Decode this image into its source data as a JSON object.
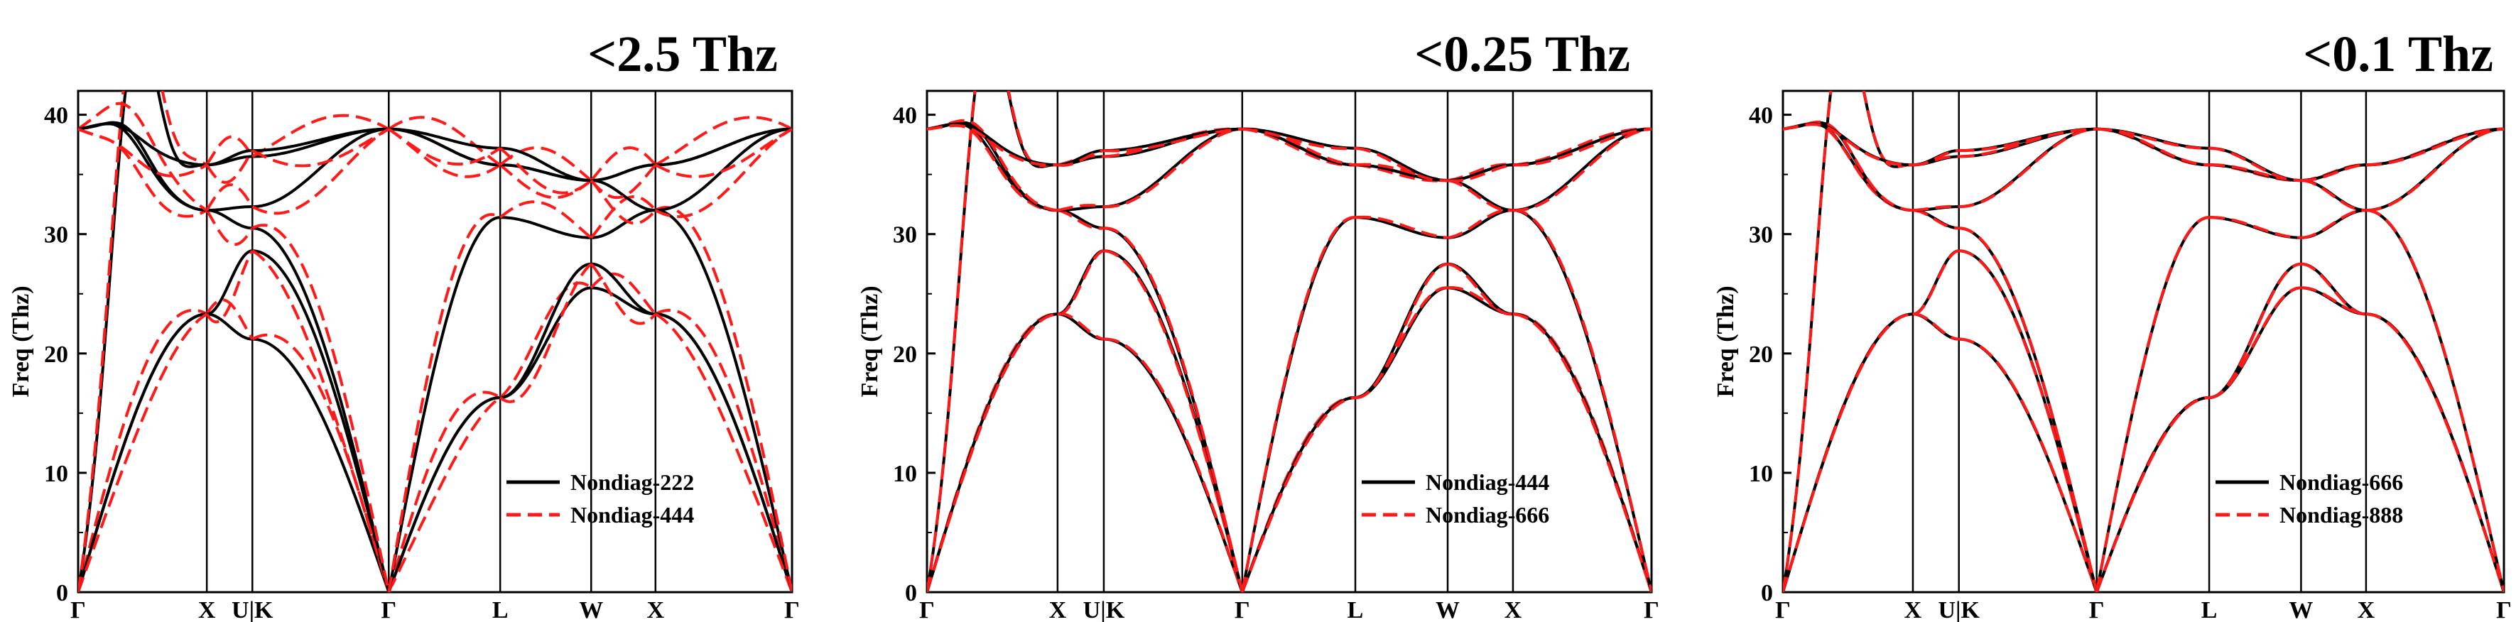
{
  "figure": {
    "kpath_labels": [
      "Γ",
      "X",
      "U|K",
      "Γ",
      "L",
      "W",
      "X",
      "Γ"
    ],
    "colors": {
      "ref": "#000000",
      "test": "#ff1a1a"
    }
  },
  "chart_data": [
    {
      "type": "line",
      "title": "<2.5 Thz",
      "ylabel": "Freq (Thz)",
      "xlabel": "",
      "ylim": [
        0,
        42
      ],
      "yticks": [
        0,
        10,
        20,
        30,
        40
      ],
      "x_ticks": [
        0,
        1.0,
        1.354,
        2.414,
        3.28,
        3.987,
        4.487,
        5.548
      ],
      "x_tick_labels": [
        "Γ",
        "X",
        "U|K",
        "Γ",
        "L",
        "W",
        "X",
        "Γ"
      ],
      "legend_position": "bottom-right",
      "deviation": 0.9,
      "series": [
        {
          "name": "Nondiag-222",
          "style": "solid",
          "color": "#000000"
        },
        {
          "name": "Nondiag-444",
          "style": "dashed",
          "color": "#ff1a1a"
        }
      ]
    },
    {
      "type": "line",
      "title": "<0.25 Thz",
      "ylabel": "Freq (Thz)",
      "xlabel": "",
      "ylim": [
        0,
        42
      ],
      "yticks": [
        0,
        10,
        20,
        30,
        40
      ],
      "x_ticks": [
        0,
        1.0,
        1.354,
        2.414,
        3.28,
        3.987,
        4.487,
        5.548
      ],
      "x_tick_labels": [
        "Γ",
        "X",
        "U|K",
        "Γ",
        "L",
        "W",
        "X",
        "Γ"
      ],
      "legend_position": "bottom-right",
      "deviation": 0.1,
      "series": [
        {
          "name": "Nondiag-444",
          "style": "solid",
          "color": "#000000"
        },
        {
          "name": "Nondiag-666",
          "style": "dashed",
          "color": "#ff1a1a"
        }
      ]
    },
    {
      "type": "line",
      "title": "<0.1 Thz",
      "ylabel": "Freq (Thz)",
      "xlabel": "",
      "ylim": [
        0,
        42
      ],
      "yticks": [
        0,
        10,
        20,
        30,
        40
      ],
      "x_ticks": [
        0,
        1.0,
        1.354,
        2.414,
        3.28,
        3.987,
        4.487,
        5.548
      ],
      "x_tick_labels": [
        "Γ",
        "X",
        "U|K",
        "Γ",
        "L",
        "W",
        "X",
        "Γ"
      ],
      "legend_position": "bottom-right",
      "deviation": 0.03,
      "series": [
        {
          "name": "Nondiag-666",
          "style": "solid",
          "color": "#000000"
        },
        {
          "name": "Nondiag-888",
          "style": "dashed",
          "color": "#ff1a1a"
        }
      ]
    }
  ],
  "bands": {
    "description_points": "Six phonon branches sampled at each k-path anchor (Γ, X, U|K, Γ, L, W, X, Γ) with extra mid-segment points",
    "segments": [
      {
        "x0": 0,
        "x1": 1.0,
        "branches": [
          [
            0,
            23.3
          ],
          [
            0,
            23.3
          ],
          [
            0,
            35.8
          ],
          [
            38.8,
            32.0
          ],
          [
            38.8,
            32.0
          ],
          [
            38.8,
            35.8
          ]
        ],
        "mid": [
          null,
          null,
          [
            1,
            0.4,
            37.2
          ],
          [
            1,
            0.3,
            39.5
          ],
          [
            1,
            0.35,
            39.4
          ],
          [
            1,
            0.25,
            39.6
          ]
        ]
      },
      {
        "x0": 1.0,
        "x1": 1.354,
        "branches": [
          [
            23.3,
            21.2
          ],
          [
            23.3,
            28.6
          ],
          [
            35.8,
            36.5
          ],
          [
            32.0,
            30.5
          ],
          [
            32.0,
            32.3
          ],
          [
            35.8,
            37.0
          ]
        ]
      },
      {
        "x0": 1.354,
        "x1": 2.414,
        "branches": [
          [
            21.2,
            0
          ],
          [
            28.6,
            0
          ],
          [
            30.5,
            0
          ],
          [
            32.3,
            38.8
          ],
          [
            36.5,
            38.8
          ],
          [
            37.0,
            38.8
          ]
        ]
      },
      {
        "x0": 2.414,
        "x1": 3.28,
        "branches": [
          [
            0,
            16.3
          ],
          [
            0,
            16.3
          ],
          [
            0,
            31.4
          ],
          [
            38.8,
            35.8
          ],
          [
            38.8,
            35.8
          ],
          [
            38.8,
            37.2
          ]
        ]
      },
      {
        "x0": 3.28,
        "x1": 3.987,
        "branches": [
          [
            16.3,
            25.5
          ],
          [
            16.3,
            27.5
          ],
          [
            31.4,
            29.7
          ],
          [
            35.8,
            34.5
          ],
          [
            35.8,
            34.5
          ],
          [
            37.2,
            34.5
          ]
        ]
      },
      {
        "x0": 3.987,
        "x1": 4.487,
        "branches": [
          [
            25.5,
            23.3
          ],
          [
            27.5,
            23.3
          ],
          [
            29.7,
            32.0
          ],
          [
            34.5,
            32.0
          ],
          [
            34.5,
            35.8
          ],
          [
            34.5,
            35.8
          ]
        ]
      },
      {
        "x0": 4.487,
        "x1": 5.548,
        "branches": [
          [
            23.3,
            0
          ],
          [
            23.3,
            0
          ],
          [
            32.0,
            0
          ],
          [
            32.0,
            38.8
          ],
          [
            35.8,
            38.8
          ],
          [
            35.8,
            38.8
          ]
        ]
      }
    ]
  }
}
